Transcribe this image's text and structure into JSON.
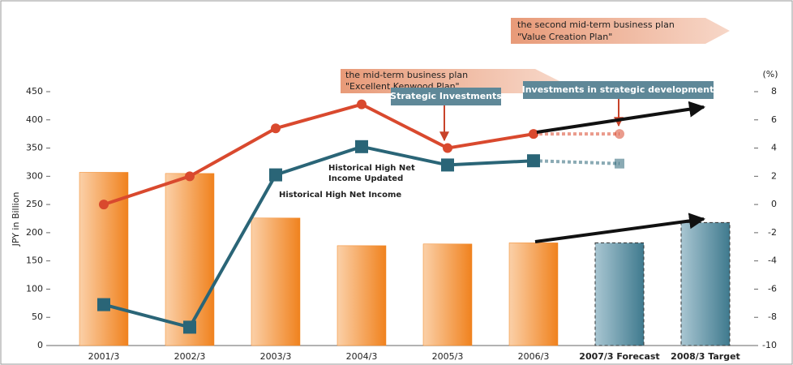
{
  "chart_data": {
    "type": "bar-line",
    "categories": [
      "2001/3",
      "2002/3",
      "2003/3",
      "2004/3",
      "2005/3",
      "2006/3",
      "2007/3 Forecast",
      "2008/3 Target"
    ],
    "bold_categories_from": 6,
    "values": [
      307,
      305,
      226,
      177,
      180,
      182,
      182,
      218
    ],
    "colors": [
      "#f0821e",
      "#f0821e",
      "#f0821e",
      "#f0821e",
      "#f0821e",
      "#f0821e",
      "#3f7a8e",
      "#3f7a8e"
    ],
    "ylabel": "JPY in Billion",
    "ylim": [
      0,
      450
    ],
    "yticks": [
      0,
      50,
      100,
      150,
      200,
      250,
      300,
      350,
      400,
      450
    ],
    "y2label": "(%)",
    "y2lim": [
      -10,
      8
    ],
    "y2ticks": [
      -10,
      -8,
      -6,
      -4,
      -2,
      0,
      2,
      4,
      6,
      8
    ],
    "series": [
      {
        "color": "#d9492e",
        "marker": "circle",
        "axis": "y2",
        "dashed_from_index": 5,
        "values": [
          0,
          2,
          5.4,
          7.1,
          4,
          5,
          5,
          null
        ]
      },
      {
        "color": "#2a6577",
        "marker": "square",
        "axis": "y2",
        "dashed_from_index": 5,
        "values": [
          -7.1,
          -8.7,
          2.1,
          4.1,
          2.8,
          3.1,
          2.9,
          null
        ]
      }
    ],
    "annotations": {
      "high_income": "Historical High Net Income",
      "high_income_updated": [
        "Historical High Net",
        "Income Updated"
      ],
      "strategic_investments": "Strategic Investments",
      "strategic_development": "Investments in strategic development",
      "plan1": [
        "the mid-term business plan",
        "\"Excellent Kenwood Plan\""
      ],
      "plan2": [
        "the second mid-term business plan",
        "\"Value Creation Plan\""
      ]
    }
  }
}
